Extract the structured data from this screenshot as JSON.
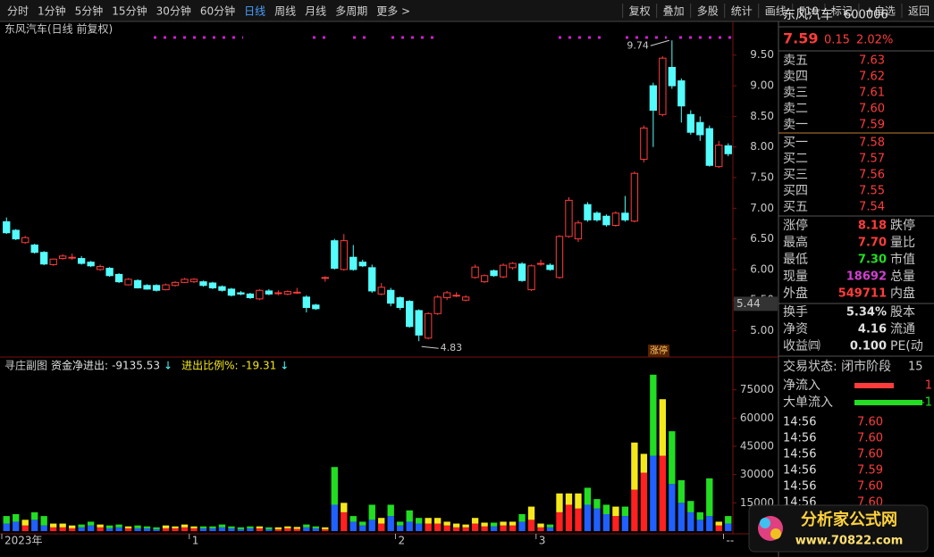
{
  "toolbar": {
    "left": [
      "分时",
      "1分钟",
      "5分钟",
      "15分钟",
      "30分钟",
      "60分钟",
      "日线",
      "周线",
      "月线",
      "多周期",
      "更多 >"
    ],
    "active": 6,
    "right": [
      "复权",
      "叠加",
      "多股",
      "统计",
      "画线",
      "F10",
      "标记",
      "+自选",
      "返回"
    ]
  },
  "chart_data": [
    {
      "type": "candlestick",
      "title": "东风汽车(日线 前复权)",
      "up_color": "#ff3c3c",
      "down_color": "#54fcfc",
      "open": [
        6.78,
        6.64,
        6.44,
        6.4,
        6.28,
        6.08,
        6.18,
        6.2,
        6.18,
        6.12,
        6.0,
        6.02,
        5.92,
        5.75,
        5.82,
        5.74,
        5.74,
        5.67,
        5.74,
        5.79,
        5.8,
        5.8,
        5.78,
        5.72,
        5.68,
        5.62,
        5.6,
        5.52,
        5.65,
        5.62,
        5.6,
        5.63,
        5.55,
        5.42,
        5.87,
        6.47,
        6.0,
        6.2,
        6.12,
        6.03,
        5.6,
        5.66,
        5.54,
        5.48,
        5.33,
        4.88,
        5.28,
        5.54,
        5.58,
        5.5,
        5.87,
        5.8,
        5.98,
        5.88,
        6.03,
        6.09,
        5.67,
        6.1,
        6.07,
        5.87,
        6.54,
        6.5,
        7.06,
        6.92,
        6.87,
        6.72,
        6.92,
        6.79,
        7.8,
        9.0,
        8.53,
        9.3,
        9.08,
        8.53,
        8.4,
        8.3,
        7.68,
        8.02
      ],
      "high": [
        6.85,
        6.66,
        6.55,
        6.42,
        6.3,
        6.18,
        6.25,
        6.26,
        6.22,
        6.14,
        6.08,
        6.04,
        5.94,
        5.86,
        5.84,
        5.76,
        5.76,
        5.77,
        5.81,
        5.86,
        5.86,
        5.82,
        5.8,
        5.74,
        5.7,
        5.65,
        5.62,
        5.68,
        5.68,
        5.66,
        5.66,
        5.7,
        5.58,
        5.44,
        5.89,
        6.5,
        6.58,
        6.4,
        6.16,
        6.08,
        5.78,
        5.7,
        5.56,
        5.5,
        5.35,
        5.3,
        5.58,
        5.65,
        5.63,
        5.58,
        6.08,
        5.92,
        6.0,
        6.1,
        6.12,
        6.12,
        6.08,
        6.16,
        6.1,
        6.56,
        7.18,
        6.8,
        7.1,
        6.95,
        6.9,
        6.95,
        7.2,
        7.6,
        8.35,
        9.05,
        9.48,
        9.74,
        9.12,
        8.6,
        8.5,
        8.35,
        8.1,
        8.06
      ],
      "low": [
        6.58,
        6.48,
        6.42,
        6.26,
        6.07,
        6.06,
        6.16,
        6.16,
        6.08,
        6.04,
        5.98,
        5.88,
        5.78,
        5.74,
        5.69,
        5.67,
        5.64,
        5.66,
        5.72,
        5.78,
        5.78,
        5.72,
        5.68,
        5.64,
        5.56,
        5.58,
        5.52,
        5.5,
        5.58,
        5.58,
        5.58,
        5.6,
        5.3,
        5.34,
        5.8,
        6.0,
        5.98,
        5.98,
        6.04,
        5.62,
        5.58,
        5.4,
        5.34,
        5.05,
        4.83,
        4.86,
        5.26,
        5.5,
        5.55,
        5.48,
        5.85,
        5.78,
        5.88,
        5.86,
        6.0,
        5.8,
        5.65,
        6.06,
        5.98,
        5.85,
        6.52,
        6.45,
        6.78,
        6.78,
        6.7,
        6.7,
        6.78,
        6.77,
        7.75,
        8.0,
        8.5,
        8.95,
        8.4,
        8.2,
        8.1,
        7.68,
        7.66,
        7.85
      ],
      "close": [
        6.6,
        6.5,
        6.52,
        6.28,
        6.09,
        6.17,
        6.22,
        6.2,
        6.1,
        6.06,
        6.05,
        5.9,
        5.8,
        5.84,
        5.7,
        5.68,
        5.66,
        5.75,
        5.79,
        5.84,
        5.84,
        5.74,
        5.7,
        5.66,
        5.58,
        5.6,
        5.54,
        5.66,
        5.6,
        5.62,
        5.64,
        5.63,
        5.38,
        5.36,
        5.87,
        6.02,
        6.47,
        6.0,
        6.06,
        5.65,
        5.71,
        5.45,
        5.38,
        5.07,
        4.93,
        5.28,
        5.55,
        5.62,
        5.58,
        5.55,
        6.04,
        5.9,
        5.9,
        6.07,
        6.1,
        5.82,
        6.06,
        6.1,
        6.0,
        6.54,
        7.13,
        6.76,
        6.81,
        6.81,
        6.73,
        6.92,
        6.81,
        7.57,
        8.31,
        8.6,
        9.45,
        9.0,
        8.67,
        8.24,
        8.2,
        7.7,
        8.03,
        7.89
      ],
      "ylim": [
        4.6,
        10.05
      ],
      "yticks": [
        {
          "value": 5,
          "label": "5.00"
        },
        {
          "value": 5.5,
          "label": "5.50"
        },
        {
          "value": 6,
          "label": "6.00"
        },
        {
          "value": 6.5,
          "label": "6.50"
        },
        {
          "value": 7,
          "label": "7.00"
        },
        {
          "value": 7.5,
          "label": "7.50"
        },
        {
          "value": 8,
          "label": "8.00"
        },
        {
          "value": 8.5,
          "label": "8.50"
        },
        {
          "value": 9,
          "label": "9.00"
        },
        {
          "value": 9.5,
          "label": "9.50"
        }
      ],
      "cursor_price": 5.44,
      "badge": "涨停"
    },
    {
      "type": "stacked_bar",
      "title": "寻庄副图",
      "indicators": [
        {
          "label": "资金净进出:",
          "value": -9135.53,
          "arrow": "↓"
        },
        {
          "label": "进出比例%:",
          "value": -19.31,
          "arrow": "↓"
        }
      ],
      "series": [
        {
          "color": "#2060ff",
          "up_color": "#ff2020",
          "values": [
            4000,
            5000,
            3000,
            6000,
            3000,
            2000,
            2000,
            1500,
            2000,
            3000,
            2000,
            1500,
            2000,
            1500,
            1500,
            1500,
            1000,
            1500,
            1500,
            2000,
            1500,
            1500,
            1500,
            2000,
            1500,
            1000,
            1500,
            1500,
            1000,
            1000,
            1500,
            1200,
            2000,
            1500,
            1000,
            14000,
            10000,
            5000,
            3000,
            6000,
            4000,
            8000,
            3000,
            5000,
            4000,
            4000,
            4000,
            3000,
            2000,
            2000,
            4000,
            2500,
            2500,
            3000,
            3000,
            5000,
            6000,
            2000,
            2000,
            10000,
            14000,
            12000,
            14000,
            12000,
            9000,
            8000,
            8000,
            22000,
            31000,
            40000,
            40000,
            25000,
            15000,
            10000,
            6000,
            8000,
            3000,
            4000
          ]
        },
        {
          "color": "#22dd22",
          "up_color": "#f4e81c",
          "values": [
            4000,
            4000,
            3000,
            4000,
            5000,
            2000,
            2000,
            1500,
            1500,
            2000,
            1500,
            1500,
            1500,
            1000,
            1500,
            1000,
            1000,
            1500,
            1000,
            1500,
            1000,
            1000,
            1000,
            1500,
            1000,
            1000,
            1000,
            1000,
            1000,
            1000,
            1000,
            1000,
            1500,
            1000,
            1000,
            20000,
            5000,
            3000,
            2000,
            8000,
            3000,
            6000,
            2000,
            6000,
            3000,
            3000,
            3000,
            2000,
            2000,
            1500,
            3000,
            2000,
            2000,
            2000,
            2000,
            4000,
            7000,
            2000,
            1500,
            10000,
            6000,
            8000,
            9000,
            5000,
            5000,
            5000,
            5000,
            25000,
            10000,
            43000,
            30000,
            28000,
            12000,
            6000,
            4000,
            20000,
            2000,
            4000
          ]
        }
      ],
      "ylim": [
        0,
        90000
      ],
      "yticks": [
        15000,
        30000,
        45000,
        60000,
        75000
      ],
      "xticks": [
        {
          "value": 0,
          "label": "2023年"
        },
        {
          "value": 20,
          "label": "1"
        },
        {
          "value": 42,
          "label": "2"
        },
        {
          "value": 57,
          "label": "3"
        },
        {
          "value": 77,
          "label": "--"
        }
      ]
    }
  ],
  "quote": {
    "name": "东风汽车",
    "code": "600006",
    "price": 7.59,
    "change": 0.15,
    "change_pct": "2.02%",
    "sell": [
      [
        "卖五",
        "7.63"
      ],
      [
        "卖四",
        "7.62"
      ],
      [
        "卖三",
        "7.61"
      ],
      [
        "卖二",
        "7.60"
      ],
      [
        "卖一",
        "7.59"
      ]
    ],
    "buy": [
      [
        "买一",
        "7.58"
      ],
      [
        "买二",
        "7.57"
      ],
      [
        "买三",
        "7.56"
      ],
      [
        "买四",
        "7.55"
      ],
      [
        "买五",
        "7.54"
      ]
    ],
    "stats": [
      [
        "涨停",
        "8.18",
        "跌停"
      ],
      [
        "最高",
        "7.70",
        "量比"
      ],
      [
        "最低",
        "7.30",
        "市值"
      ],
      [
        "现量",
        "18692",
        "总量"
      ],
      [
        "外盘",
        "549711",
        "内盘"
      ]
    ],
    "stats2": [
      [
        "换手",
        "5.34%",
        "股本"
      ],
      [
        "净资",
        "4.16",
        "流通"
      ],
      [
        "收益㈣",
        "0.100",
        "PE(动"
      ]
    ],
    "status": "交易状态: 闭市阶段",
    "status_tail": "15",
    "flows": [
      [
        "净流入",
        "1"
      ],
      [
        "大单流入",
        "-1"
      ]
    ],
    "ticks": [
      [
        "14:56",
        "7.60"
      ],
      [
        "14:56",
        "7.60"
      ],
      [
        "14:56",
        "7.60"
      ],
      [
        "14:56",
        "7.59"
      ],
      [
        "14:56",
        "7.60"
      ],
      [
        "14:56",
        "7.60"
      ]
    ]
  },
  "watermark": {
    "title": "分析家公式网",
    "url": "www.70822.com"
  }
}
